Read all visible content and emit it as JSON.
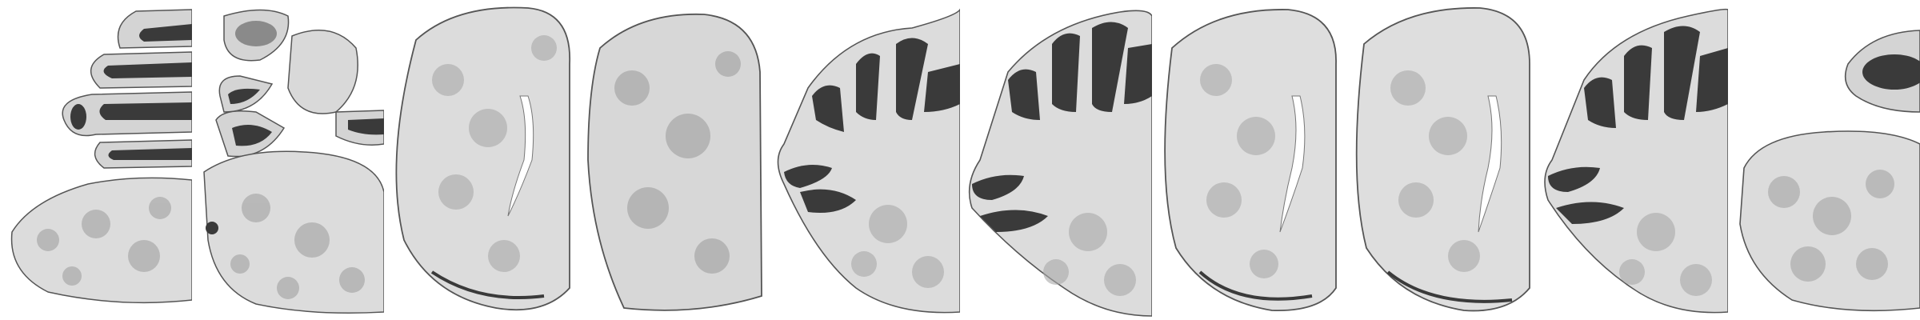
{
  "strip": {
    "tile_count": 10,
    "tiles": [
      {
        "subject": "cerebellum-and-brainstem-section",
        "stain": "nissl"
      },
      {
        "subject": "olfactory-bulb-and-cerebellar-folia-section",
        "stain": "nissl"
      },
      {
        "subject": "forebrain-hemisphere-section",
        "stain": "nissl"
      },
      {
        "subject": "forebrain-hemisphere-section",
        "stain": "nissl"
      },
      {
        "subject": "cerebellum-sagittal-section",
        "stain": "nissl"
      },
      {
        "subject": "cerebellum-sagittal-section",
        "stain": "nissl"
      },
      {
        "subject": "forebrain-hemisphere-section",
        "stain": "nissl"
      },
      {
        "subject": "forebrain-hemisphere-section",
        "stain": "nissl"
      },
      {
        "subject": "cerebellum-sagittal-section",
        "stain": "nissl"
      },
      {
        "subject": "olfactory-bulb-and-forebrain-section",
        "stain": "nissl"
      }
    ]
  },
  "colors": {
    "background": "#ffffff",
    "tissue": "#d9d9d9",
    "tissue_speckle": "#a9a9a9",
    "dense_layer": "#3a3a3a",
    "outline": "#555555"
  }
}
